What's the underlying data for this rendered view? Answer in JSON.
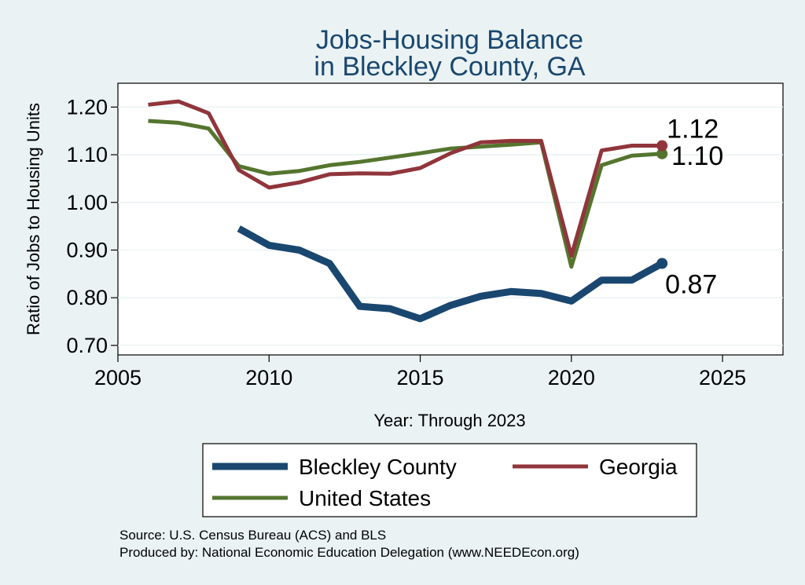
{
  "chart_data": {
    "type": "line",
    "title": [
      "Jobs-Housing Balance",
      "in Bleckley County, GA"
    ],
    "xlabel": "Year: Through 2023",
    "ylabel": "Ratio of Jobs to Housing Units",
    "xlim": [
      2005,
      2027
    ],
    "ylim": [
      0.68,
      1.25
    ],
    "xticks": [
      2005,
      2010,
      2015,
      2020,
      2025
    ],
    "yticks": [
      {
        "value": 0.7,
        "label": "0.70"
      },
      {
        "value": 0.8,
        "label": "0.80"
      },
      {
        "value": 0.9,
        "label": "0.90"
      },
      {
        "value": 1.0,
        "label": "1.00"
      },
      {
        "value": 1.1,
        "label": "1.10"
      },
      {
        "value": 1.2,
        "label": "1.20"
      }
    ],
    "grid": true,
    "legend_position": "bottom",
    "series": [
      {
        "name": "Bleckley County",
        "color": "#1a476f",
        "width": 9,
        "x": [
          2009,
          2010,
          2011,
          2012,
          2013,
          2014,
          2015,
          2016,
          2017,
          2018,
          2019,
          2020,
          2021,
          2022,
          2023
        ],
        "values": [
          0.945,
          0.91,
          0.9,
          0.872,
          0.782,
          0.777,
          0.756,
          0.784,
          0.803,
          0.813,
          0.809,
          0.793,
          0.837,
          0.837,
          0.872
        ],
        "end_label": "0.87"
      },
      {
        "name": "Georgia",
        "color": "#90353b",
        "width": 5,
        "x": [
          2006,
          2007,
          2008,
          2009,
          2010,
          2011,
          2012,
          2013,
          2014,
          2015,
          2016,
          2017,
          2018,
          2019,
          2020,
          2021,
          2022,
          2023
        ],
        "values": [
          1.205,
          1.212,
          1.187,
          1.068,
          1.031,
          1.042,
          1.059,
          1.061,
          1.06,
          1.072,
          1.103,
          1.126,
          1.129,
          1.129,
          0.888,
          1.109,
          1.119,
          1.119
        ],
        "end_label": "1.12"
      },
      {
        "name": "United States",
        "color": "#55752f",
        "width": 5,
        "x": [
          2006,
          2007,
          2008,
          2009,
          2010,
          2011,
          2012,
          2013,
          2014,
          2015,
          2016,
          2017,
          2018,
          2019,
          2020,
          2021,
          2022,
          2023
        ],
        "values": [
          1.171,
          1.167,
          1.155,
          1.076,
          1.06,
          1.066,
          1.078,
          1.085,
          1.094,
          1.103,
          1.113,
          1.117,
          1.121,
          1.126,
          0.865,
          1.078,
          1.098,
          1.102
        ],
        "end_label": "1.10"
      }
    ]
  },
  "source_lines": [
    "Source: U.S. Census Bureau (ACS) and BLS",
    "Produced by: National Economic Education Delegation (www.NEEDEcon.org)"
  ]
}
